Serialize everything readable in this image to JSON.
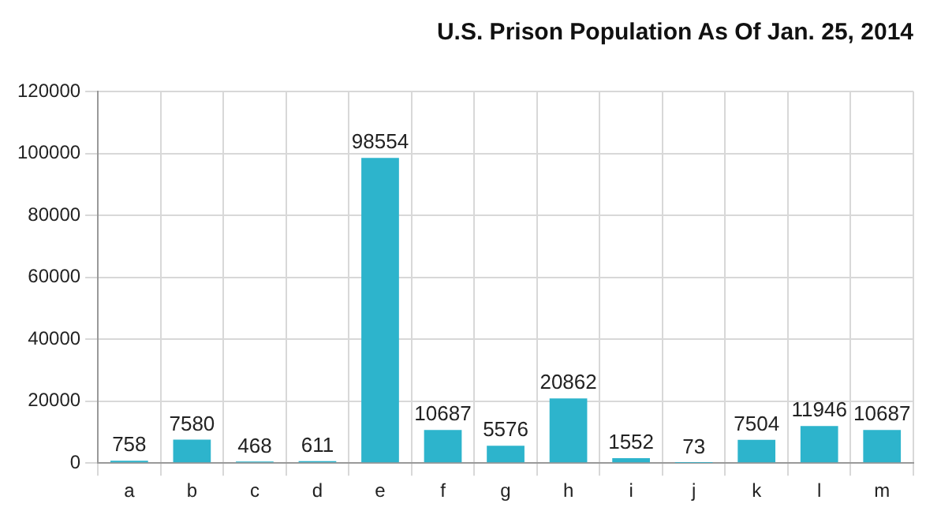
{
  "chart_data": {
    "type": "bar",
    "title": "U.S. Prison Population As Of Jan. 25, 2014",
    "categories": [
      "a",
      "b",
      "c",
      "d",
      "e",
      "f",
      "g",
      "h",
      "i",
      "j",
      "k",
      "l",
      "m"
    ],
    "values": [
      758,
      7580,
      468,
      611,
      98554,
      10687,
      5576,
      20862,
      1552,
      73,
      7504,
      11946,
      10687
    ],
    "color": "#2db4cc",
    "ylim": [
      0,
      120000
    ],
    "yticks": [
      0,
      20000,
      40000,
      60000,
      80000,
      100000,
      120000
    ],
    "grid": true,
    "data_labels": true,
    "legend": false
  }
}
